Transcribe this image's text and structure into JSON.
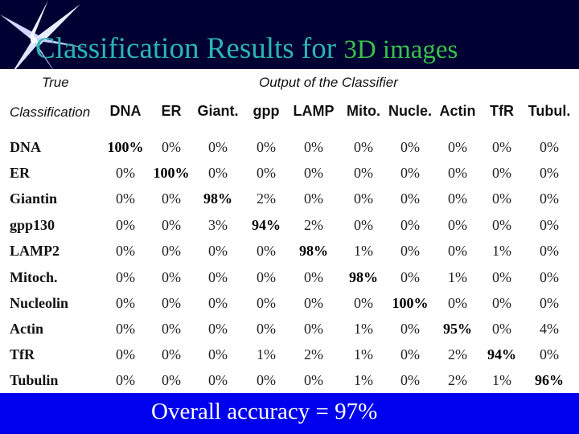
{
  "title": {
    "part1": "Classification Results for ",
    "part2": "3D images"
  },
  "headers": {
    "true_label": "True",
    "true_label_2": "Classification",
    "output_label": "Output of the Classifier"
  },
  "columns": [
    "DNA",
    "ER",
    "Giant.",
    "gpp",
    "LAMP",
    "Mito.",
    "Nucle.",
    "Actin",
    "TfR",
    "Tubul."
  ],
  "rows": [
    {
      "label": "DNA",
      "values": [
        "100%",
        "0%",
        "0%",
        "0%",
        "0%",
        "0%",
        "0%",
        "0%",
        "0%",
        "0%"
      ]
    },
    {
      "label": "ER",
      "values": [
        "0%",
        "100%",
        "0%",
        "0%",
        "0%",
        "0%",
        "0%",
        "0%",
        "0%",
        "0%"
      ]
    },
    {
      "label": "Giantin",
      "values": [
        "0%",
        "0%",
        "98%",
        "2%",
        "0%",
        "0%",
        "0%",
        "0%",
        "0%",
        "0%"
      ]
    },
    {
      "label": "gpp130",
      "values": [
        "0%",
        "0%",
        "3%",
        "94%",
        "2%",
        "0%",
        "0%",
        "0%",
        "0%",
        "0%"
      ]
    },
    {
      "label": "LAMP2",
      "values": [
        "0%",
        "0%",
        "0%",
        "0%",
        "98%",
        "1%",
        "0%",
        "0%",
        "1%",
        "0%"
      ]
    },
    {
      "label": "Mitoch.",
      "values": [
        "0%",
        "0%",
        "0%",
        "0%",
        "0%",
        "98%",
        "0%",
        "1%",
        "0%",
        "0%"
      ]
    },
    {
      "label": "Nucleolin",
      "values": [
        "0%",
        "0%",
        "0%",
        "0%",
        "0%",
        "0%",
        "100%",
        "0%",
        "0%",
        "0%"
      ]
    },
    {
      "label": "Actin",
      "values": [
        "0%",
        "0%",
        "0%",
        "0%",
        "0%",
        "1%",
        "0%",
        "95%",
        "0%",
        "4%"
      ]
    },
    {
      "label": "TfR",
      "values": [
        "0%",
        "0%",
        "0%",
        "1%",
        "2%",
        "1%",
        "0%",
        "2%",
        "94%",
        "0%"
      ]
    },
    {
      "label": "Tubulin",
      "values": [
        "0%",
        "0%",
        "0%",
        "0%",
        "0%",
        "1%",
        "0%",
        "2%",
        "1%",
        "96%"
      ]
    }
  ],
  "footer": "Overall accuracy = 97%",
  "colors": {
    "background": "#000033",
    "title_primary": "#2bb5b0",
    "title_secondary": "#39c24a",
    "footer_band": "#0000ee"
  }
}
